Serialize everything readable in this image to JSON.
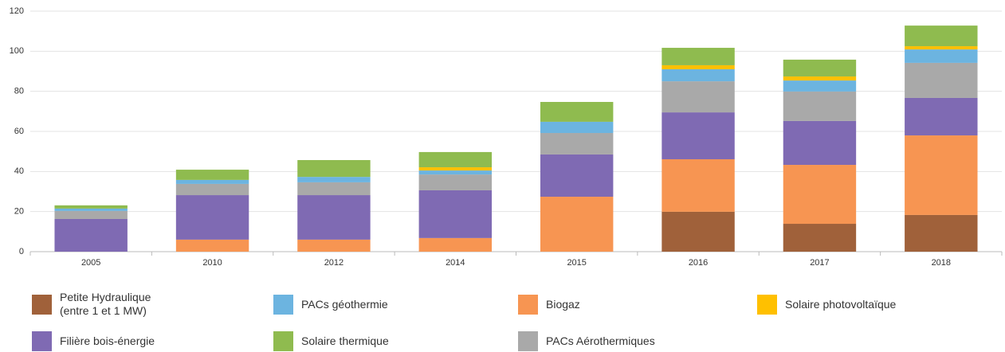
{
  "chart_data": {
    "type": "stacked_bar",
    "categories": [
      "2005",
      "2010",
      "2012",
      "2014",
      "2015",
      "2016",
      "2017",
      "2018"
    ],
    "series": [
      {
        "name": "Petite Hydraulique\n(entre 1 et 1 MW)",
        "color": "#a0613a",
        "values": [
          0,
          0,
          0,
          0,
          0,
          19.9,
          13.9,
          18.3
        ]
      },
      {
        "name": "PACs géothermie",
        "color": "#6cb4e0",
        "values": [
          1.2,
          2,
          2.7,
          2,
          5.6,
          6,
          5.5,
          6.7
        ]
      },
      {
        "name": "Biogaz",
        "color": "#f79552",
        "values": [
          0,
          6,
          6,
          6.8,
          27.4,
          26.2,
          29.4,
          39.7
        ]
      },
      {
        "name": "Solaire photovoltaïque",
        "color": "#ffc000",
        "values": [
          0,
          0,
          0,
          1.6,
          0,
          2,
          2,
          1.6
        ]
      },
      {
        "name": "Filière bois-énergie",
        "color": "#7f6ab3",
        "values": [
          16.3,
          22.2,
          22.2,
          23.8,
          21.1,
          23.4,
          21.9,
          18.7
        ]
      },
      {
        "name": "Solaire thermique",
        "color": "#8fbb4f",
        "values": [
          1.6,
          5.1,
          8.4,
          7.6,
          9.9,
          8.7,
          8.4,
          10.3
        ]
      },
      {
        "name": "PACs Aérothermiques",
        "color": "#a9a9a9",
        "values": [
          4,
          5.6,
          6.4,
          7.9,
          10.7,
          15.5,
          14.7,
          17.5
        ]
      }
    ],
    "ylim": [
      0,
      120
    ],
    "yticks": [
      0,
      20,
      40,
      60,
      80,
      100,
      120
    ],
    "grid": true
  }
}
